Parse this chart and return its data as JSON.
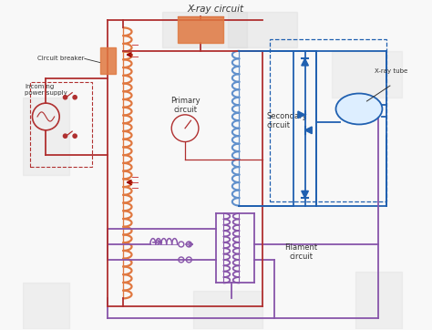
{
  "title": "X-ray circuit",
  "bg_color": "#f8f8f8",
  "primary_color": "#b03030",
  "secondary_color": "#2060b0",
  "filament_color": "#8855aa",
  "coil_primary_color": "#e07840",
  "coil_secondary_color": "#6090cc",
  "text_color": "#333333",
  "gray_box_color": "#d8d8d8",
  "labels": {
    "title": "X-ray circuit",
    "circuit_breaker": "Circuit breaker",
    "incoming_power": "Incoming\npower supply",
    "primary_circuit": "Primary\ncircuit",
    "secondary_circuit": "Secondary\ncircuit",
    "xray_tube": "X-ray tube",
    "filament_circuit": "Filament\ncircuit"
  },
  "figsize": [
    4.74,
    3.62
  ],
  "dpi": 100
}
